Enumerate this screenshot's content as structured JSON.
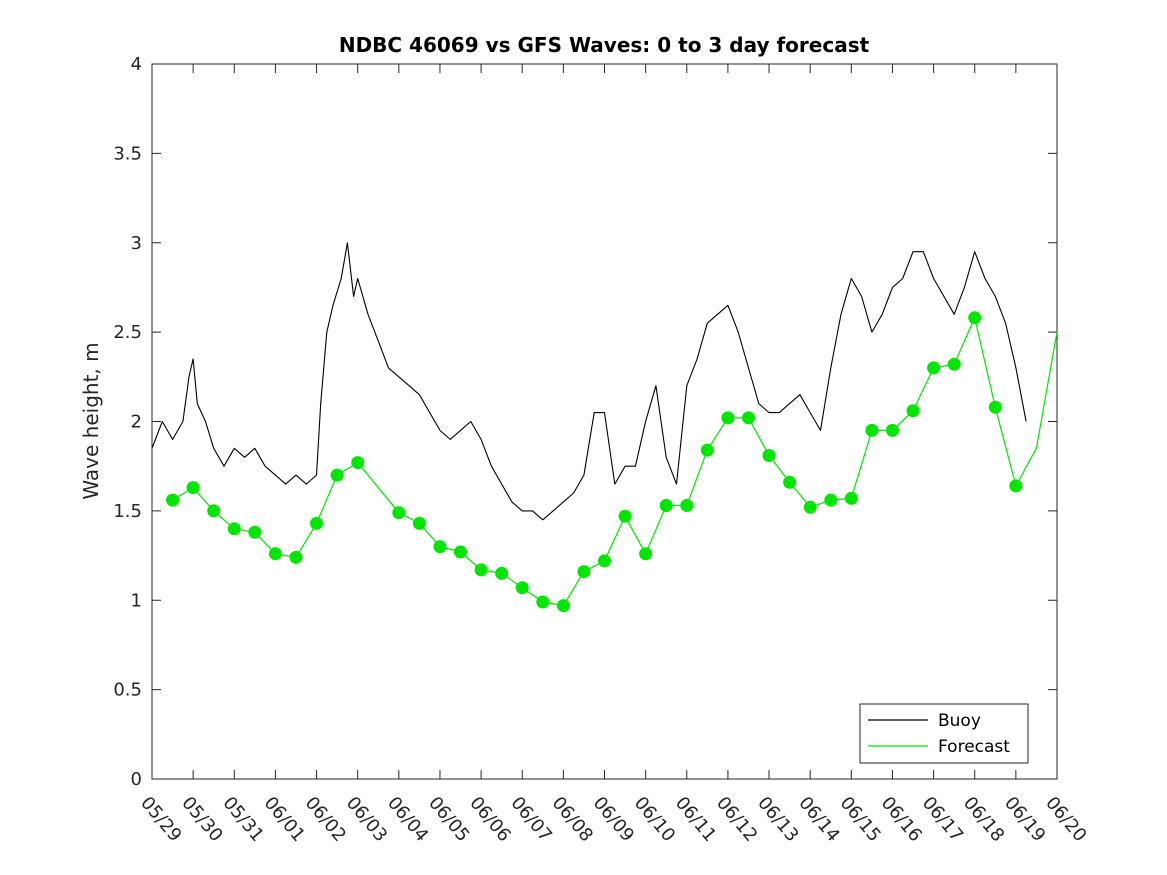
{
  "chart_data": {
    "type": "line",
    "title": "NDBC 46069 vs GFS Waves: 0 to 3 day forecast",
    "xlabel": "",
    "ylabel": "Wave height, m",
    "ylim": [
      0,
      4
    ],
    "yticks": [
      "0",
      "0.5",
      "1",
      "1.5",
      "2",
      "2.5",
      "3",
      "3.5",
      "4"
    ],
    "xlim_days": [
      0,
      22
    ],
    "xticks": [
      "05/29",
      "05/30",
      "05/31",
      "06/01",
      "06/02",
      "06/03",
      "06/04",
      "06/05",
      "06/06",
      "06/07",
      "06/08",
      "06/09",
      "06/10",
      "06/11",
      "06/12",
      "06/13",
      "06/14",
      "06/15",
      "06/16",
      "06/17",
      "06/18",
      "06/19",
      "06/20"
    ],
    "grid": false,
    "legend": {
      "position": "bottom-right",
      "entries": [
        {
          "name": "Buoy",
          "color": "#000000"
        },
        {
          "name": "Forecast",
          "color": "#00e600"
        }
      ]
    },
    "series": [
      {
        "name": "Buoy",
        "color": "#000000",
        "x": [
          0,
          0.25,
          0.5,
          0.75,
          0.9,
          1.0,
          1.1,
          1.3,
          1.5,
          1.75,
          2.0,
          2.25,
          2.5,
          2.75,
          3.0,
          3.25,
          3.5,
          3.75,
          4.0,
          4.1,
          4.25,
          4.4,
          4.6,
          4.75,
          4.9,
          5.0,
          5.25,
          5.5,
          5.75,
          6.0,
          6.25,
          6.5,
          6.75,
          7.0,
          7.25,
          7.5,
          7.75,
          8.0,
          8.25,
          8.5,
          8.75,
          9.0,
          9.25,
          9.5,
          9.75,
          10.0,
          10.25,
          10.5,
          10.75,
          11.0,
          11.25,
          11.5,
          11.75,
          12.0,
          12.25,
          12.5,
          12.75,
          13.0,
          13.25,
          13.5,
          13.75,
          14.0,
          14.25,
          14.5,
          14.75,
          15.0,
          15.25,
          15.5,
          15.75,
          16.0,
          16.25,
          16.5,
          16.75,
          17.0,
          17.25,
          17.5,
          17.75,
          18.0,
          18.25,
          18.5,
          18.75,
          19.0,
          19.25,
          19.5,
          19.75,
          20.0,
          20.25,
          20.5,
          20.75,
          21.0,
          21.25
        ],
        "values": [
          1.85,
          2.0,
          1.9,
          2.0,
          2.25,
          2.35,
          2.1,
          2.0,
          1.85,
          1.75,
          1.85,
          1.8,
          1.85,
          1.75,
          1.7,
          1.65,
          1.7,
          1.65,
          1.7,
          2.1,
          2.5,
          2.65,
          2.8,
          3.0,
          2.7,
          2.8,
          2.6,
          2.45,
          2.3,
          2.25,
          2.2,
          2.15,
          2.05,
          1.95,
          1.9,
          1.95,
          2.0,
          1.9,
          1.75,
          1.65,
          1.55,
          1.5,
          1.5,
          1.45,
          1.5,
          1.55,
          1.6,
          1.7,
          2.05,
          2.05,
          1.65,
          1.75,
          1.75,
          2.0,
          2.2,
          1.8,
          1.65,
          2.2,
          2.35,
          2.55,
          2.6,
          2.65,
          2.5,
          2.3,
          2.1,
          2.05,
          2.05,
          2.1,
          2.15,
          2.05,
          1.95,
          2.3,
          2.6,
          2.8,
          2.7,
          2.5,
          2.6,
          2.75,
          2.8,
          2.95,
          2.95,
          2.8,
          2.7,
          2.6,
          2.75,
          2.95,
          2.8,
          2.7,
          2.55,
          2.3,
          2.0
        ]
      },
      {
        "name": "Forecast",
        "color": "#00e600",
        "x": [
          0.5,
          1.0,
          1.5,
          2.0,
          2.5,
          3.0,
          3.5,
          4.0,
          4.5,
          5.0,
          6.0,
          6.5,
          7.0,
          7.5,
          8.0,
          8.5,
          9.0,
          9.5,
          10.0,
          10.5,
          11.0,
          11.5,
          12.0,
          12.5,
          13.0,
          13.5,
          14.0,
          14.5,
          15.0,
          15.5,
          16.0,
          16.5,
          17.0,
          17.5,
          18.0,
          18.5,
          19.0,
          19.5,
          20.0,
          20.5,
          21.0,
          21.5,
          22.0
        ],
        "values": [
          1.56,
          1.63,
          1.5,
          1.4,
          1.38,
          1.26,
          1.24,
          1.43,
          1.7,
          1.77,
          1.49,
          1.43,
          1.3,
          1.27,
          1.17,
          1.15,
          1.07,
          0.99,
          0.97,
          1.16,
          1.22,
          1.47,
          1.26,
          1.53,
          1.53,
          1.84,
          2.02,
          2.02,
          1.81,
          1.66,
          1.52,
          1.56,
          1.57,
          1.95,
          1.95,
          2.06,
          2.3,
          2.32,
          2.58,
          2.08,
          1.64,
          1.85,
          2.5
        ]
      }
    ],
    "markers": {
      "name": "Forecast",
      "color": "#00e600",
      "x": [
        0.5,
        1.0,
        1.5,
        2.0,
        2.5,
        3.0,
        3.5,
        4.0,
        4.5,
        5.0,
        6.0,
        6.5,
        7.0,
        7.5,
        8.0,
        8.5,
        9.0,
        9.5,
        10.0,
        10.5,
        11.0,
        11.5,
        12.0,
        12.5,
        13.0,
        13.5,
        14.0,
        14.5,
        15.0,
        15.5,
        16.0,
        16.5,
        17.0,
        17.5,
        18.0,
        18.5,
        19.0,
        19.5,
        20.0,
        20.5,
        21.0
      ],
      "values": [
        1.56,
        1.63,
        1.5,
        1.4,
        1.38,
        1.26,
        1.24,
        1.43,
        1.7,
        1.77,
        1.49,
        1.43,
        1.3,
        1.27,
        1.17,
        1.15,
        1.07,
        0.99,
        0.97,
        1.16,
        1.22,
        1.47,
        1.26,
        1.53,
        1.53,
        1.84,
        2.02,
        2.02,
        1.81,
        1.66,
        1.52,
        1.56,
        1.57,
        1.95,
        1.95,
        2.06,
        2.3,
        2.32,
        2.58,
        2.08,
        1.64
      ]
    }
  }
}
